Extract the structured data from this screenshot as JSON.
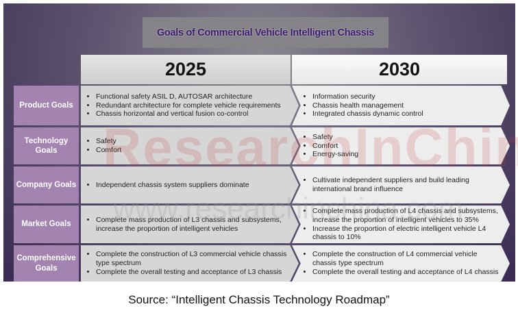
{
  "title": "Goals of Commercial Vehicle Intelligent Chassis",
  "years": [
    "2025",
    "2030"
  ],
  "rows": [
    {
      "label": "Product Goals",
      "y2025": [
        "Functional safety ASIL D, AUTOSAR architecture",
        "Redundant architecture for complete vehicle requirements",
        "Chassis horizontal and vertical fusion co-control"
      ],
      "y2030": [
        "Information security",
        "Chassis health management",
        "Integrated chassis dynamic control"
      ]
    },
    {
      "label": "Technology Goals",
      "y2025": [
        "Safety",
        "Comfort"
      ],
      "y2030": [
        "Safety",
        "Comfort",
        "Energy-saving"
      ]
    },
    {
      "label": "Company Goals",
      "y2025": [
        "Independent chassis system suppliers dominate"
      ],
      "y2030": [
        "Cultivate independent suppliers and build leading international brand influence"
      ]
    },
    {
      "label": "Market Goals",
      "y2025": [
        "Complete mass production of L3 chassis and subsystems, increase the proportion of intelligent vehicles"
      ],
      "y2030": [
        "Complete mass production of L4 chassis and subsystems, increase the proportion of intelligent vehicles to 35%",
        "Increase the proportion of electric intelligent vehicle L4 chassis to 10%"
      ]
    },
    {
      "label": "Comprehensive Goals",
      "y2025": [
        "Complete the construction of L3 commercial vehicle chassis type spectrum",
        "Complete the overall testing and acceptance of L3 chassis"
      ],
      "y2030": [
        "Complete the construction of L4 commercial vehicle chassis type spectrum",
        "Complete the overall testing and acceptance of L4 chassis"
      ]
    }
  ],
  "watermark": {
    "logo": "ResearchInChina",
    "url": "www.researchinchina.com"
  },
  "source": "Source: “Intelligent Chassis Technology Roadmap”"
}
